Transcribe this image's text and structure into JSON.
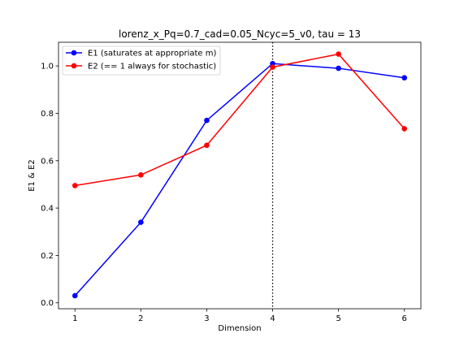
{
  "chart_data": {
    "type": "line",
    "title": "lorenz_x_Pq=0.7_cad=0.05_Ncyc=5_v0, tau = 13",
    "xlabel": "Dimension",
    "ylabel": "E1 & E2",
    "x": [
      1,
      2,
      3,
      4,
      5,
      6
    ],
    "xticks": [
      "1",
      "2",
      "3",
      "4",
      "5",
      "6"
    ],
    "yticks": [
      "0.0",
      "0.2",
      "0.4",
      "0.6",
      "0.8",
      "1.0"
    ],
    "xlim": [
      0.75,
      6.25
    ],
    "ylim": [
      -0.025,
      1.1
    ],
    "vline_x": 4,
    "legend_position": "top-left",
    "series": [
      {
        "name": "E1 (saturates at appropriate m)",
        "color": "#0000ff",
        "values": [
          0.03,
          0.34,
          0.77,
          1.01,
          0.99,
          0.95
        ]
      },
      {
        "name": "E2 (== 1 always for stochastic)",
        "color": "#ff0000",
        "values": [
          0.495,
          0.54,
          0.665,
          0.995,
          1.05,
          0.735
        ]
      }
    ]
  }
}
